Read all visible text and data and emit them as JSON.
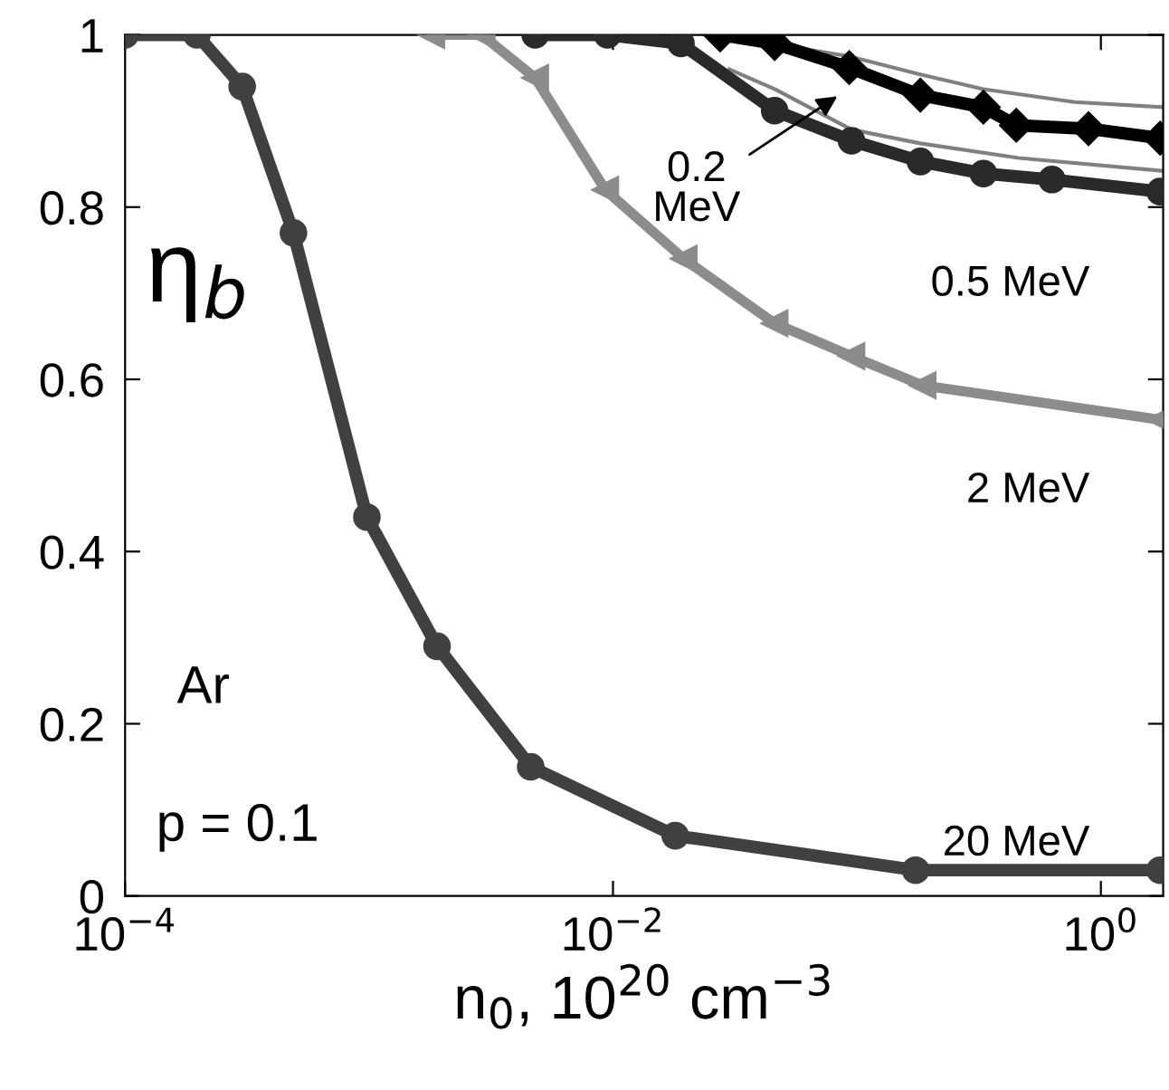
{
  "chart_data": {
    "type": "line",
    "xlabel": "n$_{0}$, 10$^{20}$ cm$^{−3}$",
    "ylabel": "η$_{b}$",
    "log": "x",
    "xlim": [
      0.0001,
      1.8
    ],
    "xticks": [
      {
        "value": 0.0001,
        "label": "10$^{−4}$"
      },
      {
        "value": 0.01,
        "label": "10$^{−2}$"
      },
      {
        "value": 1,
        "label": "10$^{0}$"
      }
    ],
    "ylim": [
      0,
      1
    ],
    "yticks": [
      0,
      0.2,
      0.4,
      0.6,
      0.8,
      1
    ],
    "grid": false,
    "legend": false,
    "line_style": "solid",
    "annotations": [
      "Ar",
      "p = 0.1"
    ],
    "series": [
      {
        "name": "20 MeV",
        "color": "#404040",
        "marker": "circle",
        "x": [
          0.0001,
          0.000197,
          0.000302,
          0.00049,
          0.00098,
          0.0019,
          0.0046,
          0.018,
          0.174,
          1.75
        ],
        "values": [
          1.0,
          1.0,
          0.94,
          0.77,
          0.44,
          0.29,
          0.15,
          0.07,
          0.03,
          0.03
        ]
      },
      {
        "name": "2 MeV",
        "color": "#8c8c8c",
        "marker": "triangle",
        "x": [
          0.0018,
          0.0029,
          0.0048,
          0.0093,
          0.0195,
          0.046,
          0.095,
          0.186,
          1.75
        ],
        "values": [
          1.0,
          1.0,
          0.95,
          0.82,
          0.74,
          0.665,
          0.627,
          0.593,
          0.553
        ]
      },
      {
        "name": "0.5 MeV",
        "color": "#2a2a2a",
        "marker": "circle",
        "x": [
          0.0048,
          0.0095,
          0.019,
          0.046,
          0.095,
          0.182,
          0.33,
          0.63,
          1.75
        ],
        "values": [
          1.0,
          1.0,
          0.99,
          0.912,
          0.877,
          0.853,
          0.839,
          0.832,
          0.818
        ]
      },
      {
        "name": "0.2\nMeV",
        "color": "#000000",
        "marker": "diamond",
        "x": [
          0.0275,
          0.046,
          0.093,
          0.182,
          0.33,
          0.45,
          0.89,
          1.75
        ],
        "values": [
          1.0,
          0.99,
          0.962,
          0.93,
          0.916,
          0.895,
          0.891,
          0.88
        ]
      },
      {
        "color": "#808080",
        "marker": "none",
        "x": [
          0.035,
          0.093,
          0.182,
          0.33,
          0.78,
          1.8
        ],
        "values": [
          0.995,
          0.975,
          0.954,
          0.937,
          0.922,
          0.916
        ]
      },
      {
        "color": "#808080",
        "marker": "none",
        "x": [
          0.03,
          0.046,
          0.095,
          0.182,
          0.46,
          1.8
        ],
        "values": [
          0.96,
          0.937,
          0.89,
          0.874,
          0.857,
          0.842
        ]
      }
    ]
  }
}
